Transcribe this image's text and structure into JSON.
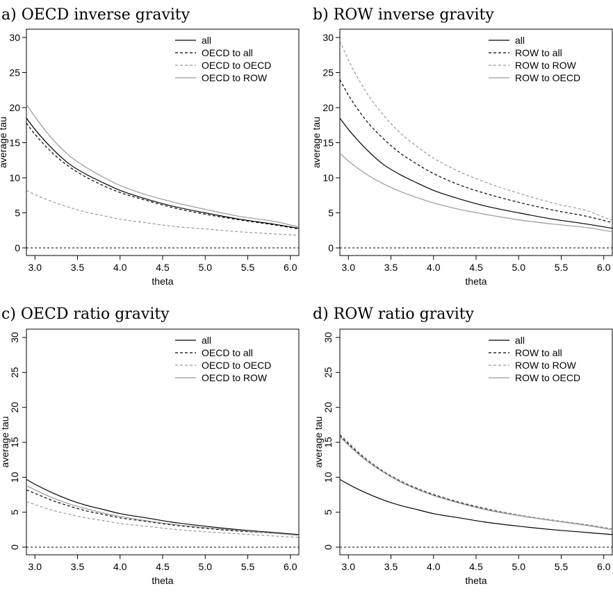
{
  "chart_data": [
    {
      "type": "line",
      "title": "a) OECD inverse gravity",
      "xlabel": "theta",
      "ylabel": "average tau",
      "xlim": [
        2.9,
        6.1
      ],
      "ylim": [
        0,
        30
      ],
      "xticks": [
        "3.0",
        "3.5",
        "4.0",
        "4.5",
        "5.0",
        "5.5",
        "6.0"
      ],
      "yticks": [
        "0",
        "5",
        "10",
        "15",
        "20",
        "25",
        "30"
      ],
      "ytick_rotation": "horizontal",
      "legend_position": "top-right",
      "x": [
        2.9,
        3.0,
        3.2,
        3.4,
        3.6,
        3.8,
        4.0,
        4.3,
        4.6,
        5.0,
        5.4,
        5.8,
        6.1
      ],
      "series": [
        {
          "name": "all",
          "style": "solid",
          "color": "#000000",
          "values": [
            18.5,
            16.9,
            14.2,
            12.0,
            10.5,
            9.3,
            8.2,
            7.0,
            6.0,
            5.0,
            4.1,
            3.4,
            2.8
          ]
        },
        {
          "name": "OECD to all",
          "style": "dashed",
          "color": "#000000",
          "values": [
            17.8,
            16.2,
            13.6,
            11.6,
            10.1,
            8.9,
            7.9,
            6.8,
            5.8,
            4.8,
            4.0,
            3.3,
            2.7
          ]
        },
        {
          "name": "OECD to OECD",
          "style": "dashed",
          "color": "#999999",
          "values": [
            8.2,
            7.6,
            6.6,
            5.8,
            5.1,
            4.6,
            4.1,
            3.6,
            3.1,
            2.7,
            2.3,
            2.0,
            1.8
          ]
        },
        {
          "name": "OECD to ROW",
          "style": "solid",
          "color": "#999999",
          "values": [
            20.5,
            18.7,
            15.6,
            13.2,
            11.5,
            10.1,
            8.9,
            7.6,
            6.6,
            5.5,
            4.5,
            3.8,
            3.0
          ]
        }
      ],
      "reference_line": {
        "y": 0,
        "style": "dotted"
      }
    },
    {
      "type": "line",
      "title": "b) ROW inverse gravity",
      "xlabel": "theta",
      "ylabel": "average tau",
      "xlim": [
        2.9,
        6.1
      ],
      "ylim": [
        0,
        30
      ],
      "xticks": [
        "3.0",
        "3.5",
        "4.0",
        "4.5",
        "5.0",
        "5.5",
        "6.0"
      ],
      "yticks": [
        "0",
        "5",
        "10",
        "15",
        "20",
        "25",
        "30"
      ],
      "ytick_rotation": "horizontal",
      "legend_position": "top-right",
      "x": [
        2.9,
        3.0,
        3.2,
        3.4,
        3.6,
        3.8,
        4.0,
        4.3,
        4.6,
        5.0,
        5.4,
        5.8,
        6.1
      ],
      "series": [
        {
          "name": "all",
          "style": "solid",
          "color": "#000000",
          "values": [
            18.5,
            16.9,
            14.2,
            12.0,
            10.5,
            9.3,
            8.2,
            7.0,
            6.0,
            5.0,
            4.1,
            3.4,
            2.8
          ]
        },
        {
          "name": "ROW to all",
          "style": "dashed",
          "color": "#000000",
          "values": [
            24.0,
            21.8,
            18.3,
            15.7,
            13.6,
            12.0,
            10.6,
            9.0,
            7.8,
            6.5,
            5.4,
            4.5,
            3.6
          ]
        },
        {
          "name": "ROW to ROW",
          "style": "dashed",
          "color": "#999999",
          "values": [
            29.5,
            26.8,
            22.4,
            19.1,
            16.5,
            14.5,
            12.8,
            10.9,
            9.4,
            7.8,
            6.4,
            5.3,
            3.9
          ]
        },
        {
          "name": "ROW to OECD",
          "style": "solid",
          "color": "#999999",
          "values": [
            13.5,
            12.4,
            10.6,
            9.2,
            8.1,
            7.2,
            6.4,
            5.5,
            4.8,
            4.0,
            3.4,
            2.9,
            2.3
          ]
        }
      ],
      "reference_line": {
        "y": 0,
        "style": "dotted"
      }
    },
    {
      "type": "line",
      "title": "c) OECD ratio gravity",
      "xlabel": "theta",
      "ylabel": "average tau",
      "xlim": [
        2.9,
        6.1
      ],
      "ylim": [
        0,
        30
      ],
      "xticks": [
        "3.0",
        "3.5",
        "4.0",
        "4.5",
        "5.0",
        "5.5",
        "6.0"
      ],
      "yticks": [
        "0",
        "5",
        "10",
        "15",
        "20",
        "25",
        "30"
      ],
      "ytick_rotation": "vertical",
      "legend_position": "top-right",
      "x": [
        2.9,
        3.0,
        3.2,
        3.4,
        3.6,
        3.8,
        4.0,
        4.3,
        4.6,
        5.0,
        5.4,
        5.8,
        6.1
      ],
      "series": [
        {
          "name": "all",
          "style": "solid",
          "color": "#000000",
          "values": [
            9.7,
            9.0,
            7.8,
            6.8,
            6.0,
            5.4,
            4.8,
            4.2,
            3.6,
            3.0,
            2.5,
            2.1,
            1.8
          ]
        },
        {
          "name": "OECD to all",
          "style": "dashed",
          "color": "#000000",
          "values": [
            8.2,
            7.7,
            6.7,
            5.9,
            5.2,
            4.7,
            4.2,
            3.7,
            3.2,
            2.7,
            2.3,
            2.0,
            1.7
          ]
        },
        {
          "name": "OECD to OECD",
          "style": "dashed",
          "color": "#999999",
          "values": [
            6.5,
            6.1,
            5.3,
            4.7,
            4.2,
            3.8,
            3.4,
            3.0,
            2.6,
            2.2,
            1.9,
            1.6,
            1.4
          ]
        },
        {
          "name": "OECD to ROW",
          "style": "solid",
          "color": "#999999",
          "values": [
            8.8,
            8.2,
            7.1,
            6.2,
            5.5,
            4.9,
            4.4,
            3.8,
            3.3,
            2.8,
            2.4,
            2.0,
            1.7
          ]
        }
      ],
      "reference_line": {
        "y": 0,
        "style": "dotted"
      }
    },
    {
      "type": "line",
      "title": "d) ROW ratio gravity",
      "xlabel": "theta",
      "ylabel": "average tau",
      "xlim": [
        2.9,
        6.1
      ],
      "ylim": [
        0,
        30
      ],
      "xticks": [
        "3.0",
        "3.5",
        "4.0",
        "4.5",
        "5.0",
        "5.5",
        "6.0"
      ],
      "yticks": [
        "0",
        "5",
        "10",
        "15",
        "20",
        "25",
        "30"
      ],
      "ytick_rotation": "vertical",
      "legend_position": "top-right",
      "x": [
        2.9,
        3.0,
        3.2,
        3.4,
        3.6,
        3.8,
        4.0,
        4.3,
        4.6,
        5.0,
        5.4,
        5.8,
        6.1
      ],
      "series": [
        {
          "name": "all",
          "style": "solid",
          "color": "#000000",
          "values": [
            9.7,
            9.0,
            7.8,
            6.8,
            6.0,
            5.4,
            4.8,
            4.2,
            3.6,
            3.0,
            2.5,
            2.1,
            1.8
          ]
        },
        {
          "name": "ROW to all",
          "style": "dashed",
          "color": "#000000",
          "values": [
            16.0,
            14.8,
            12.6,
            10.9,
            9.5,
            8.4,
            7.5,
            6.4,
            5.5,
            4.6,
            3.8,
            3.2,
            2.6
          ]
        },
        {
          "name": "ROW to ROW",
          "style": "dashed",
          "color": "#999999",
          "values": [
            16.2,
            15.0,
            12.8,
            11.0,
            9.6,
            8.5,
            7.6,
            6.5,
            5.6,
            4.6,
            3.9,
            3.2,
            2.6
          ]
        },
        {
          "name": "ROW to OECD",
          "style": "solid",
          "color": "#999999",
          "values": [
            15.8,
            14.6,
            12.5,
            10.8,
            9.4,
            8.3,
            7.4,
            6.3,
            5.4,
            4.5,
            3.8,
            3.1,
            2.5
          ]
        }
      ],
      "reference_line": {
        "y": 0,
        "style": "dotted"
      }
    }
  ]
}
